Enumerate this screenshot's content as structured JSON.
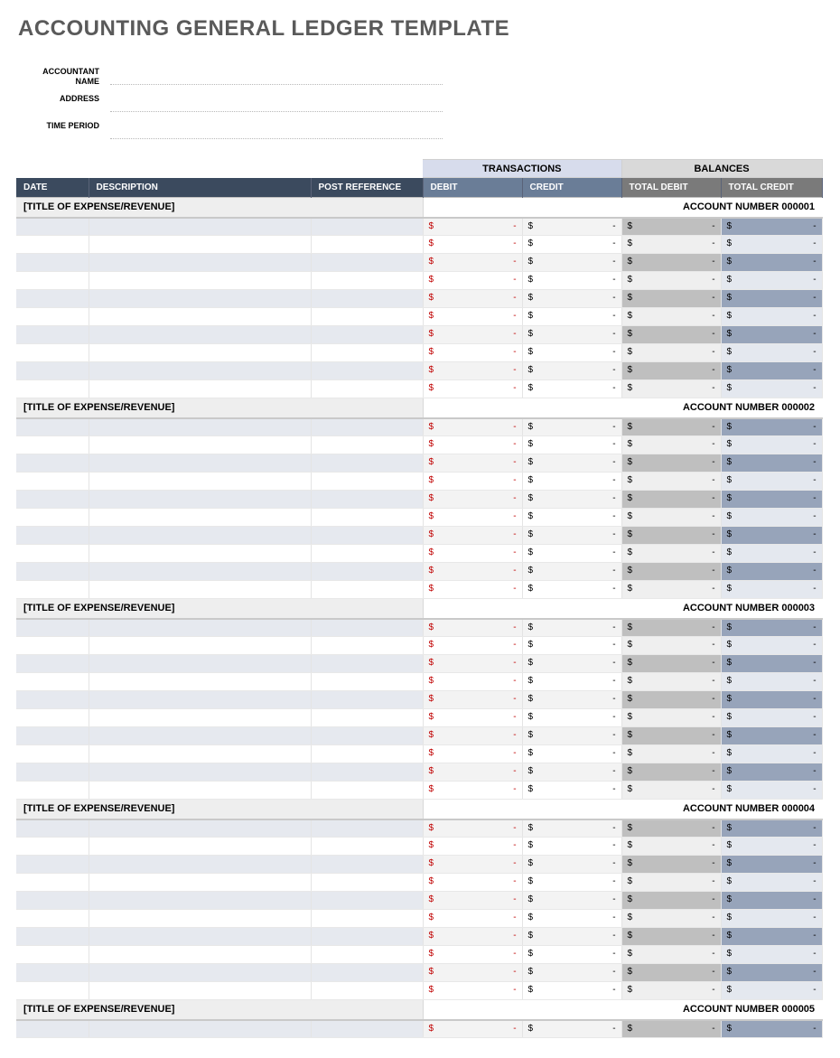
{
  "title": "ACCOUNTING GENERAL LEDGER TEMPLATE",
  "meta": {
    "accountant_label": "ACCOUNTANT\nNAME",
    "address_label": "ADDRESS",
    "period_label": "TIME PERIOD",
    "accountant_value": "",
    "address_value": "",
    "period_value": ""
  },
  "super_headers": {
    "transactions": "TRANSACTIONS",
    "balances": "BALANCES"
  },
  "headers": {
    "date": "DATE",
    "description": "DESCRIPTION",
    "post_reference": "POST REFERENCE",
    "debit": "DEBIT",
    "credit": "CREDIT",
    "total_debit": "TOTAL DEBIT",
    "total_credit": "TOTAL CREDIT"
  },
  "money_placeholder": {
    "symbol": "$",
    "dash": "-"
  },
  "colors": {
    "title_text": "#5a5a5a",
    "header_dark": "#3b4a5e",
    "header_mid": "#6a7d97",
    "header_gray": "#7a7a7a",
    "super_trans_bg": "#d7dcec",
    "super_bal_bg": "#d9d9d9",
    "row_odd_left": "#e6e9ef",
    "row_odd_trans": "#f3f3f3",
    "row_even_tdebit": "#efefef",
    "row_odd_tdebit": "#bfbfbf",
    "row_even_tcredit": "#e4e8ef",
    "row_odd_tcredit": "#97a4ba",
    "section_bg": "#eeeeee",
    "debit_text": "#c00000"
  },
  "sections": [
    {
      "title": "[TITLE OF EXPENSE/REVENUE]",
      "account": "ACCOUNT NUMBER 000001",
      "row_count": 10
    },
    {
      "title": "[TITLE OF EXPENSE/REVENUE]",
      "account": "ACCOUNT NUMBER 000002",
      "row_count": 10
    },
    {
      "title": "[TITLE OF EXPENSE/REVENUE]",
      "account": "ACCOUNT NUMBER 000003",
      "row_count": 10
    },
    {
      "title": "[TITLE OF EXPENSE/REVENUE]",
      "account": "ACCOUNT NUMBER 000004",
      "row_count": 10
    },
    {
      "title": "[TITLE OF EXPENSE/REVENUE]",
      "account": "ACCOUNT NUMBER 000005",
      "row_count": 1
    }
  ]
}
